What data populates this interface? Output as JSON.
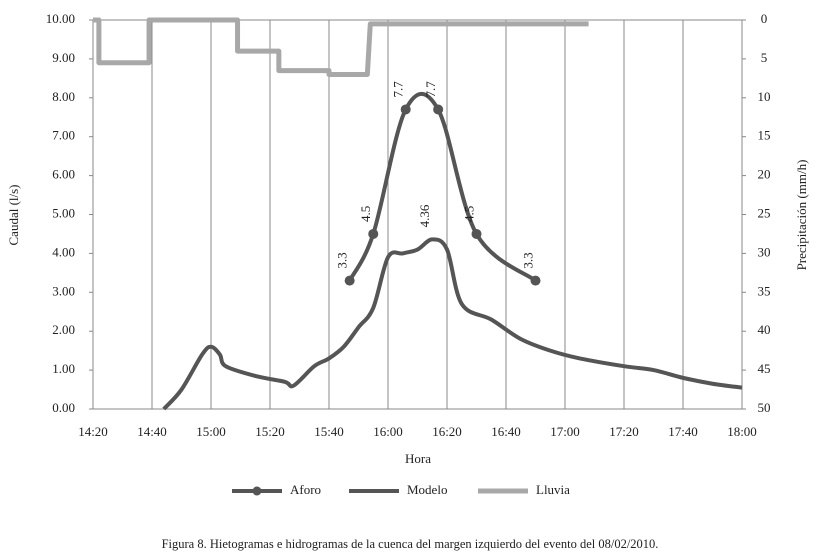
{
  "chart_data": {
    "type": "line",
    "caption": "Figura 8. Hietogramas e hidrogramas de la cuenca del margen izquierdo del evento del 08/02/2010.",
    "xlabel": "Hora",
    "ylabel": "Caudal (l/s)",
    "y2label": "Precipitación (mm/h)",
    "xlim": [
      860,
      1080
    ],
    "xticks": [
      {
        "value": 860,
        "label": "14:20"
      },
      {
        "value": 880,
        "label": "14:40"
      },
      {
        "value": 900,
        "label": "15:00"
      },
      {
        "value": 920,
        "label": "15:20"
      },
      {
        "value": 940,
        "label": "15:40"
      },
      {
        "value": 960,
        "label": "16:00"
      },
      {
        "value": 980,
        "label": "16:20"
      },
      {
        "value": 1000,
        "label": "16:40"
      },
      {
        "value": 1020,
        "label": "17:00"
      },
      {
        "value": 1040,
        "label": "17:20"
      },
      {
        "value": 1060,
        "label": "17:40"
      },
      {
        "value": 1080,
        "label": "18:00"
      }
    ],
    "ylim": [
      0,
      10
    ],
    "yticks": [
      {
        "value": 0,
        "label": "0.00"
      },
      {
        "value": 1,
        "label": "1.00"
      },
      {
        "value": 2,
        "label": "2.00"
      },
      {
        "value": 3,
        "label": "3.00"
      },
      {
        "value": 4,
        "label": "4.00"
      },
      {
        "value": 5,
        "label": "5.00"
      },
      {
        "value": 6,
        "label": "6.00"
      },
      {
        "value": 7,
        "label": "7.00"
      },
      {
        "value": 8,
        "label": "8.00"
      },
      {
        "value": 9,
        "label": "9.00"
      },
      {
        "value": 10,
        "label": "10.00"
      }
    ],
    "y2lim": [
      50,
      0
    ],
    "y2ticks": [
      0,
      5,
      10,
      15,
      20,
      25,
      30,
      35,
      40,
      45,
      50
    ],
    "grid": true,
    "series": [
      {
        "name": "Aforo",
        "color": "#555555",
        "markers": true,
        "x": [
          947,
          955,
          966,
          977,
          990,
          1010
        ],
        "values": [
          3.3,
          4.5,
          7.7,
          7.7,
          4.5,
          3.3
        ],
        "value_labels": [
          "3.3",
          "4.5",
          "7.7",
          "7.7",
          "4.5",
          "3.3"
        ]
      },
      {
        "name": "Modelo",
        "color": "#555555",
        "x": [
          884,
          890,
          897,
          900,
          903,
          905,
          915,
          925,
          928,
          935,
          940,
          945,
          950,
          955,
          960,
          965,
          970,
          975,
          980,
          985,
          995,
          1005,
          1015,
          1025,
          1040,
          1050,
          1060,
          1070,
          1080
        ],
        "values": [
          0,
          0.5,
          1.4,
          1.6,
          1.4,
          1.1,
          0.85,
          0.7,
          0.6,
          1.1,
          1.3,
          1.6,
          2.1,
          2.6,
          3.9,
          4.0,
          4.1,
          4.36,
          4.1,
          2.7,
          2.3,
          1.8,
          1.5,
          1.3,
          1.1,
          1.0,
          0.8,
          0.65,
          0.55
        ],
        "value_labels": [
          null,
          null,
          null,
          null,
          null,
          null,
          null,
          null,
          null,
          null,
          null,
          null,
          null,
          null,
          null,
          null,
          null,
          "4.36",
          null,
          null,
          null,
          null,
          null,
          null,
          null,
          null,
          null,
          null,
          null
        ]
      },
      {
        "name": "Lluvia",
        "color": "#a8a8a8",
        "axis": "y2",
        "x": [
          860,
          862,
          862,
          879,
          879,
          909,
          909,
          923,
          923,
          940,
          940,
          953,
          954,
          1028
        ],
        "values": [
          0,
          0,
          5.5,
          5.5,
          0,
          0,
          4,
          4,
          6.5,
          6.5,
          7,
          7,
          0.5,
          0.5
        ]
      }
    ]
  }
}
